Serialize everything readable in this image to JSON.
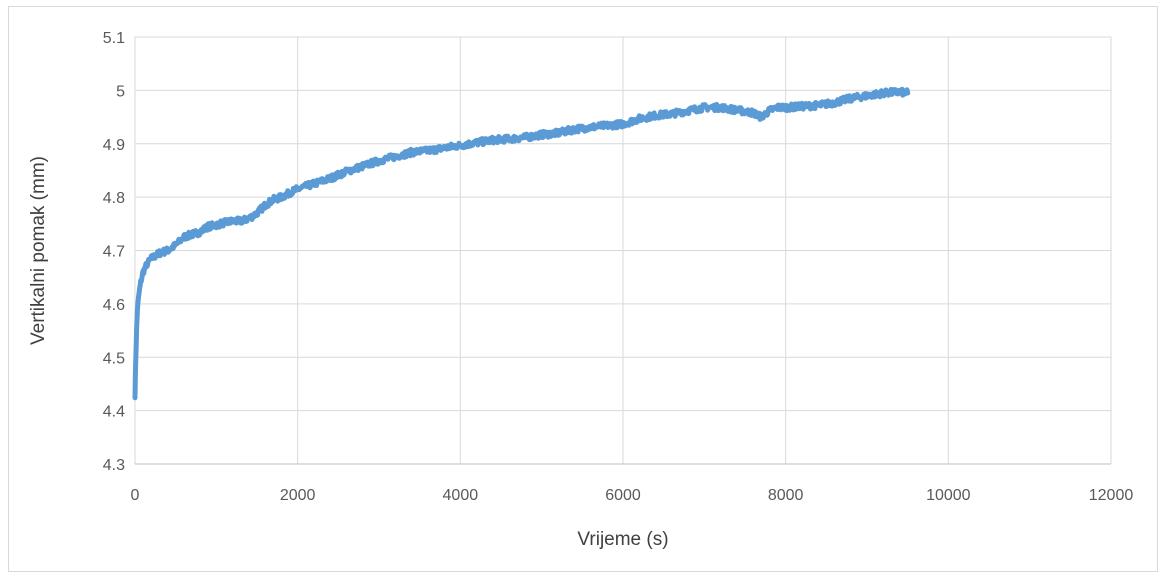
{
  "chart_data": {
    "type": "line",
    "title": "",
    "xlabel": "Vrijeme (s)",
    "ylabel": "Vertikalni pomak (mm)",
    "xlim": [
      0,
      12000
    ],
    "ylim": [
      4.3,
      5.1
    ],
    "x_ticks": [
      "0",
      "2000",
      "4000",
      "6000",
      "8000",
      "10000",
      "12000"
    ],
    "y_ticks": [
      "4.3",
      "4.4",
      "4.5",
      "4.6",
      "4.7",
      "4.8",
      "4.9",
      "5",
      "5.1"
    ],
    "grid": true,
    "legend": "none",
    "series_color": "#5b9bd5",
    "grid_color": "#d9d9d9",
    "series": [
      {
        "x": [
          0,
          10,
          20,
          30,
          50,
          70,
          100,
          150,
          200,
          300,
          400,
          500,
          600,
          700,
          800,
          900,
          1000,
          1100,
          1200,
          1300,
          1400,
          1500,
          1600,
          1700,
          1800,
          1900,
          2000,
          2200,
          2400,
          2600,
          2800,
          3000,
          3200,
          3400,
          3600,
          3800,
          4000,
          4200,
          4400,
          4600,
          4800,
          5000,
          5200,
          5400,
          5600,
          5800,
          6000,
          6200,
          6400,
          6600,
          6800,
          7000,
          7200,
          7400,
          7600,
          7700,
          7800,
          7900,
          8000,
          8200,
          8400,
          8600,
          8800,
          9000,
          9200,
          9400,
          9500
        ],
        "y": [
          4.43,
          4.5,
          4.55,
          4.59,
          4.62,
          4.64,
          4.66,
          4.675,
          4.685,
          4.695,
          4.7,
          4.71,
          4.725,
          4.73,
          4.735,
          4.745,
          4.748,
          4.752,
          4.755,
          4.755,
          4.76,
          4.77,
          4.785,
          4.795,
          4.8,
          4.808,
          4.815,
          4.825,
          4.835,
          4.848,
          4.858,
          4.868,
          4.876,
          4.884,
          4.887,
          4.892,
          4.897,
          4.902,
          4.907,
          4.909,
          4.912,
          4.917,
          4.92,
          4.927,
          4.931,
          4.934,
          4.937,
          4.947,
          4.953,
          4.956,
          4.962,
          4.968,
          4.968,
          4.963,
          4.958,
          4.95,
          4.962,
          4.968,
          4.968,
          4.97,
          4.972,
          4.977,
          4.985,
          4.99,
          4.995,
          4.997,
          4.995
        ]
      }
    ]
  }
}
